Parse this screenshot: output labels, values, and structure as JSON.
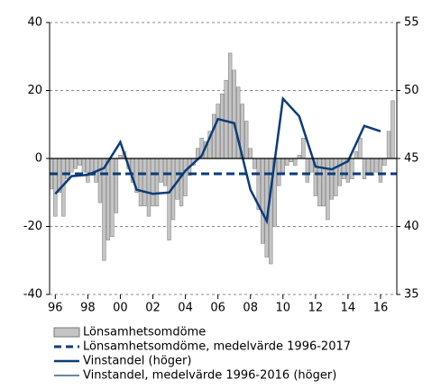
{
  "chart_data": {
    "type": "combo",
    "xlim": [
      1995.65,
      2017.0
    ],
    "xticks": [
      {
        "value": 1996,
        "label": "96"
      },
      {
        "value": 1998,
        "label": "98"
      },
      {
        "value": 2000,
        "label": "00"
      },
      {
        "value": 2002,
        "label": "02"
      },
      {
        "value": 2004,
        "label": "04"
      },
      {
        "value": 2006,
        "label": "06"
      },
      {
        "value": 2008,
        "label": "08"
      },
      {
        "value": 2010,
        "label": "10"
      },
      {
        "value": 2012,
        "label": "12"
      },
      {
        "value": 2014,
        "label": "14"
      },
      {
        "value": 2016,
        "label": "16"
      }
    ],
    "ylim": [
      -40,
      40
    ],
    "yticks": [
      -40,
      -20,
      0,
      20,
      40
    ],
    "y2lim": [
      35,
      55
    ],
    "y2ticks": [
      35,
      40,
      45,
      50,
      55
    ],
    "grid": true,
    "series": [
      {
        "name": "Lönsamhetsomdöme",
        "type": "bar",
        "color": "#c4c4c4",
        "x": [
          1995.75,
          1996,
          1996.25,
          1996.5,
          1996.75,
          1997,
          1997.25,
          1997.5,
          1997.75,
          1998,
          1998.25,
          1998.5,
          1998.75,
          1999,
          1999.25,
          1999.5,
          1999.75,
          2000,
          2000.25,
          2000.5,
          2000.75,
          2001,
          2001.25,
          2001.5,
          2001.75,
          2002,
          2002.25,
          2002.5,
          2002.75,
          2003,
          2003.25,
          2003.5,
          2003.75,
          2004,
          2004.25,
          2004.5,
          2004.75,
          2005,
          2005.25,
          2005.5,
          2005.75,
          2006,
          2006.25,
          2006.5,
          2006.75,
          2007,
          2007.25,
          2007.5,
          2007.75,
          2008,
          2008.25,
          2008.5,
          2008.75,
          2009,
          2009.25,
          2009.5,
          2009.75,
          2010,
          2010.25,
          2010.5,
          2010.75,
          2011,
          2011.25,
          2011.5,
          2011.75,
          2012,
          2012.25,
          2012.5,
          2012.75,
          2013,
          2013.25,
          2013.5,
          2013.75,
          2014,
          2014.25,
          2014.5,
          2014.75,
          2015,
          2015.25,
          2015.5,
          2015.75,
          2016,
          2016.25,
          2016.5,
          2016.75
        ],
        "values": [
          -9,
          -17,
          -10,
          -17,
          -6,
          -4,
          -3,
          -2,
          -4,
          -7,
          -5,
          -7,
          -13,
          -30,
          -24,
          -23,
          -16,
          1,
          2,
          -3,
          -7,
          -10,
          -14,
          -14,
          -17,
          -14,
          -14,
          -7,
          -8,
          -24,
          -18,
          -12,
          -14,
          -11,
          -5,
          -2,
          3,
          6,
          5,
          8,
          13,
          16,
          19,
          23,
          31,
          26,
          21,
          16,
          11,
          3,
          -3,
          -15,
          -25,
          -29,
          -31,
          -20,
          -8,
          -4,
          -2,
          -1,
          -2,
          1,
          6,
          -7,
          -4,
          -11,
          -14,
          -14,
          -18,
          -12,
          -11,
          -8,
          -6,
          -7,
          -6,
          2,
          6,
          -6,
          -5,
          -5,
          -4,
          -7,
          -2,
          8,
          17
        ]
      },
      {
        "name": "Lönsamhetsomdöme, medelvärde 1996-2017",
        "type": "hline",
        "color": "#0b3c7a",
        "value": -4.5
      },
      {
        "name": "Vinstandel (höger)",
        "type": "line",
        "axis": "y2",
        "color": "#0b3c7a",
        "x": [
          1996,
          1997,
          1998,
          1999,
          2000,
          2001,
          2002,
          2003,
          2004,
          2005,
          2006,
          2007,
          2008,
          2009,
          2010,
          2011,
          2012,
          2013,
          2014,
          2015,
          2016
        ],
        "values": [
          42.4,
          43.7,
          43.8,
          44.3,
          46.2,
          42.7,
          42.4,
          42.5,
          44.1,
          45.2,
          47.9,
          47.6,
          42.7,
          40.4,
          49.4,
          48.1,
          44.4,
          44.2,
          44.8,
          47.4,
          47.0
        ]
      },
      {
        "name": "Vinstandel, medelvärde 1996-2016 (höger)",
        "type": "hline",
        "axis": "y2",
        "color": "#0b3c7a",
        "value": 45
      }
    ]
  }
}
